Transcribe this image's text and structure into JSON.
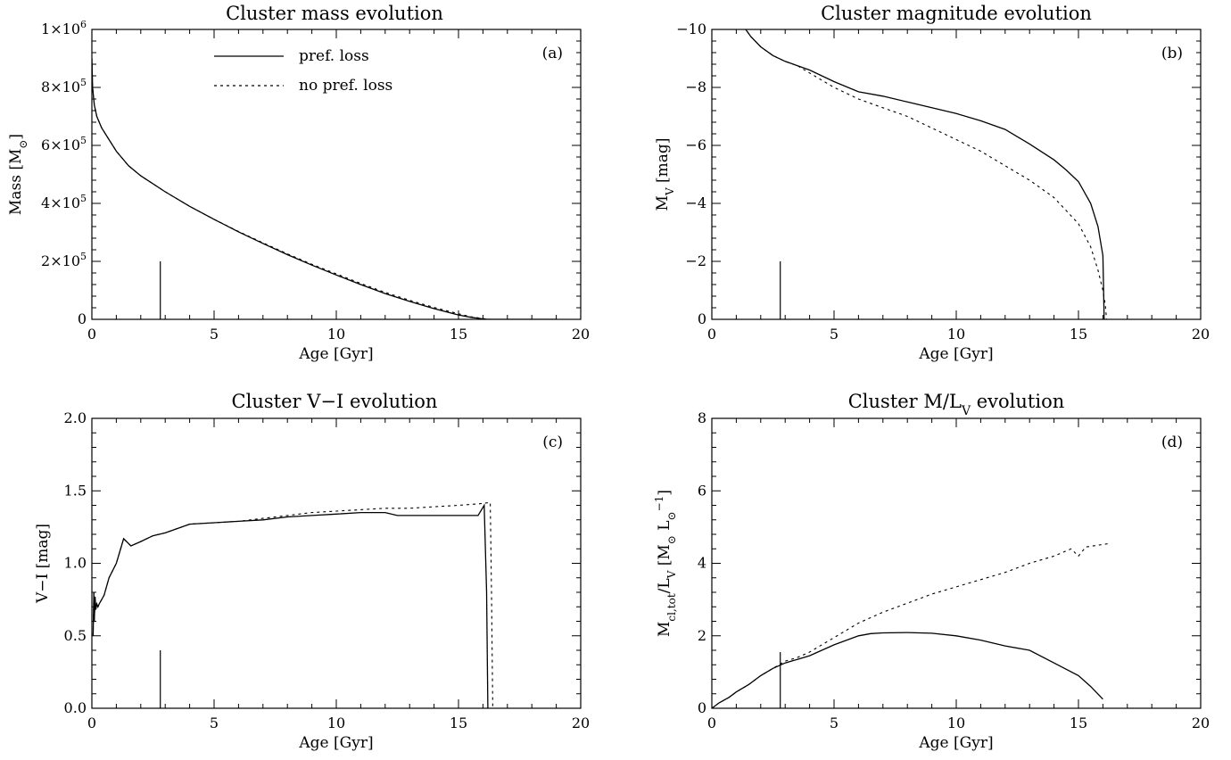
{
  "chart_data": [
    {
      "type": "line",
      "panel": "(a)",
      "title": "Cluster mass evolution",
      "xlabel": "Age [Gyr]",
      "ylabel": "Mass [M⊙]",
      "xlim": [
        0,
        20
      ],
      "ylim": [
        0,
        1000000
      ],
      "xticks": [
        0,
        5,
        10,
        15,
        20
      ],
      "xtick_labels": [
        "0",
        "5",
        "10",
        "15",
        "20"
      ],
      "yticks": [
        0,
        200000,
        400000,
        600000,
        800000,
        1000000
      ],
      "ytick_labels": [
        "0",
        "2×10⁵",
        "4×10⁵",
        "6×10⁵",
        "8×10⁵",
        "1×10⁶"
      ],
      "legend": {
        "placement": "top-center",
        "entries": [
          {
            "label": "pref. loss",
            "style": "solid"
          },
          {
            "label": "no pref. loss",
            "style": "dashed"
          }
        ]
      },
      "marker_line": {
        "x": 2.8,
        "y0": 0,
        "y1": 200000
      },
      "series": [
        {
          "name": "pref. loss",
          "style": "solid",
          "x": [
            0,
            0.03,
            0.1,
            0.2,
            0.4,
            0.7,
            1.0,
            1.5,
            2,
            3,
            4,
            5,
            6,
            7,
            8,
            9,
            10,
            11,
            12,
            13,
            14,
            15,
            15.5,
            16,
            16.2,
            17,
            18,
            19
          ],
          "y": [
            900000,
            800000,
            740000,
            700000,
            660000,
            620000,
            580000,
            530000,
            495000,
            440000,
            390000,
            345000,
            302000,
            262000,
            223000,
            187000,
            153000,
            120000,
            89000,
            62000,
            37000,
            15000,
            7000,
            1500,
            0,
            0,
            0,
            0
          ]
        },
        {
          "name": "no pref. loss",
          "style": "dashed",
          "x": [
            0,
            0.03,
            0.1,
            0.2,
            0.4,
            0.7,
            1.0,
            1.5,
            2,
            3,
            4,
            5,
            6,
            7,
            8,
            9,
            10,
            11,
            12,
            13,
            14,
            15,
            15.5,
            16,
            16.3,
            17,
            18,
            19
          ],
          "y": [
            900000,
            800000,
            740000,
            700000,
            660000,
            620000,
            580000,
            530000,
            495000,
            440000,
            390000,
            345000,
            303000,
            264000,
            226000,
            190000,
            157000,
            124000,
            93000,
            66000,
            41000,
            19000,
            9000,
            2500,
            0,
            0,
            0,
            0
          ]
        }
      ]
    },
    {
      "type": "line",
      "panel": "(b)",
      "title": "Cluster magnitude evolution",
      "xlabel": "Age [Gyr]",
      "ylabel": "M_V [mag]",
      "xlim": [
        0,
        20
      ],
      "ylim": [
        0,
        -10
      ],
      "xticks": [
        0,
        5,
        10,
        15,
        20
      ],
      "xtick_labels": [
        "0",
        "5",
        "10",
        "15",
        "20"
      ],
      "yticks": [
        0,
        -2,
        -4,
        -6,
        -8,
        -10
      ],
      "ytick_labels": [
        "0",
        "−2",
        "−4",
        "−6",
        "−8",
        "−10"
      ],
      "marker_line": {
        "x": 2.8,
        "y0": 0,
        "y1": -2
      },
      "series": [
        {
          "name": "pref. loss",
          "style": "solid",
          "x": [
            1.3,
            1.6,
            2.0,
            2.5,
            3.0,
            3.5,
            4,
            5,
            6,
            7,
            8,
            9,
            10,
            11,
            12,
            13,
            14,
            14.5,
            15,
            15.5,
            15.8,
            16.0,
            16.05
          ],
          "y": [
            -10.1,
            -9.75,
            -9.4,
            -9.1,
            -8.9,
            -8.75,
            -8.6,
            -8.2,
            -7.85,
            -7.7,
            -7.5,
            -7.3,
            -7.1,
            -6.85,
            -6.55,
            -6.05,
            -5.5,
            -5.15,
            -4.75,
            -4.0,
            -3.2,
            -2.2,
            0
          ]
        },
        {
          "name": "no pref. loss",
          "style": "dashed",
          "x": [
            1.3,
            1.6,
            2.0,
            2.5,
            3.0,
            3.5,
            4,
            5,
            6,
            7,
            8,
            9,
            10,
            11,
            12,
            13,
            14,
            15,
            15.5,
            15.8,
            16.0,
            16.1,
            16.15
          ],
          "y": [
            -10.1,
            -9.75,
            -9.4,
            -9.1,
            -8.9,
            -8.75,
            -8.5,
            -8.0,
            -7.6,
            -7.3,
            -7.0,
            -6.6,
            -6.2,
            -5.8,
            -5.3,
            -4.8,
            -4.2,
            -3.3,
            -2.5,
            -1.7,
            -1.0,
            -0.5,
            0
          ]
        }
      ]
    },
    {
      "type": "line",
      "panel": "(c)",
      "title": "Cluster V−I evolution",
      "xlabel": "Age [Gyr]",
      "ylabel": "V−I [mag]",
      "xlim": [
        0,
        20
      ],
      "ylim": [
        0,
        2
      ],
      "xticks": [
        0,
        5,
        10,
        15,
        20
      ],
      "xtick_labels": [
        "0",
        "5",
        "10",
        "15",
        "20"
      ],
      "yticks": [
        0,
        0.5,
        1.0,
        1.5,
        2.0
      ],
      "ytick_labels": [
        "0.0",
        "0.5",
        "1.0",
        "1.5",
        "2.0"
      ],
      "marker_line": {
        "x": 2.8,
        "y0": 0,
        "y1": 0.4
      },
      "series": [
        {
          "name": "pref. loss",
          "style": "solid",
          "x": [
            0.05,
            0.08,
            0.1,
            0.13,
            0.16,
            0.2,
            0.25,
            0.3,
            0.4,
            0.5,
            0.7,
            1.0,
            1.3,
            1.6,
            2,
            2.5,
            3,
            3.5,
            4,
            5,
            6,
            7,
            8,
            9,
            10,
            11,
            12,
            12.5,
            13,
            14,
            15,
            15.8,
            16.05,
            16.15,
            16.2
          ],
          "y": [
            0.5,
            0.8,
            0.6,
            0.77,
            0.68,
            0.72,
            0.7,
            0.72,
            0.75,
            0.78,
            0.9,
            1.0,
            1.17,
            1.12,
            1.15,
            1.19,
            1.21,
            1.24,
            1.27,
            1.28,
            1.29,
            1.3,
            1.32,
            1.33,
            1.34,
            1.35,
            1.35,
            1.33,
            1.33,
            1.33,
            1.33,
            1.33,
            1.4,
            0.8,
            0
          ]
        },
        {
          "name": "no pref. loss",
          "style": "dashed",
          "x": [
            0.05,
            0.08,
            0.1,
            0.13,
            0.16,
            0.2,
            0.25,
            0.3,
            0.4,
            0.5,
            0.7,
            1.0,
            1.3,
            1.6,
            2,
            2.5,
            3,
            3.5,
            4,
            5,
            6,
            7,
            8,
            9,
            10,
            11,
            12,
            13,
            14,
            15,
            15.8,
            16.3,
            16.35,
            16.4
          ],
          "y": [
            0.5,
            0.8,
            0.6,
            0.77,
            0.68,
            0.72,
            0.7,
            0.72,
            0.75,
            0.78,
            0.9,
            1.0,
            1.17,
            1.12,
            1.15,
            1.19,
            1.21,
            1.24,
            1.27,
            1.28,
            1.29,
            1.31,
            1.33,
            1.35,
            1.36,
            1.37,
            1.38,
            1.38,
            1.39,
            1.4,
            1.41,
            1.42,
            0.8,
            0
          ]
        }
      ]
    },
    {
      "type": "line",
      "panel": "(d)",
      "title": "Cluster M/L_V evolution",
      "xlabel": "Age [Gyr]",
      "ylabel": "M_cl,tot/L_V [M⊙ L⊙⁻¹]",
      "xlim": [
        0,
        20
      ],
      "ylim": [
        0,
        8
      ],
      "xticks": [
        0,
        5,
        10,
        15,
        20
      ],
      "xtick_labels": [
        "0",
        "5",
        "10",
        "15",
        "20"
      ],
      "yticks": [
        0,
        2,
        4,
        6,
        8
      ],
      "ytick_labels": [
        "0",
        "2",
        "4",
        "6",
        "8"
      ],
      "marker_line": {
        "x": 2.8,
        "y0": 0,
        "y1": 1.55
      },
      "series": [
        {
          "name": "pref. loss",
          "style": "solid",
          "x": [
            0,
            0.3,
            0.7,
            1,
            1.5,
            2,
            2.5,
            3,
            3.5,
            4,
            5,
            6,
            6.5,
            7,
            8,
            9,
            10,
            11,
            12,
            13,
            14,
            15,
            15.5,
            16
          ],
          "y": [
            0,
            0.15,
            0.3,
            0.45,
            0.65,
            0.9,
            1.1,
            1.25,
            1.35,
            1.45,
            1.75,
            2.0,
            2.06,
            2.08,
            2.09,
            2.07,
            2.0,
            1.88,
            1.72,
            1.6,
            1.25,
            0.9,
            0.6,
            0.25
          ]
        },
        {
          "name": "no pref. loss",
          "style": "dashed",
          "x": [
            0,
            0.3,
            0.7,
            1,
            1.5,
            2,
            2.5,
            3,
            3.5,
            4,
            5,
            6,
            7,
            8,
            9,
            10,
            11,
            12,
            13,
            14,
            14.7,
            15,
            15.3,
            16.3
          ],
          "y": [
            0,
            0.15,
            0.3,
            0.45,
            0.65,
            0.9,
            1.1,
            1.3,
            1.4,
            1.55,
            1.95,
            2.35,
            2.65,
            2.9,
            3.15,
            3.35,
            3.55,
            3.75,
            4.0,
            4.2,
            4.4,
            4.2,
            4.45,
            4.55
          ]
        }
      ]
    }
  ]
}
